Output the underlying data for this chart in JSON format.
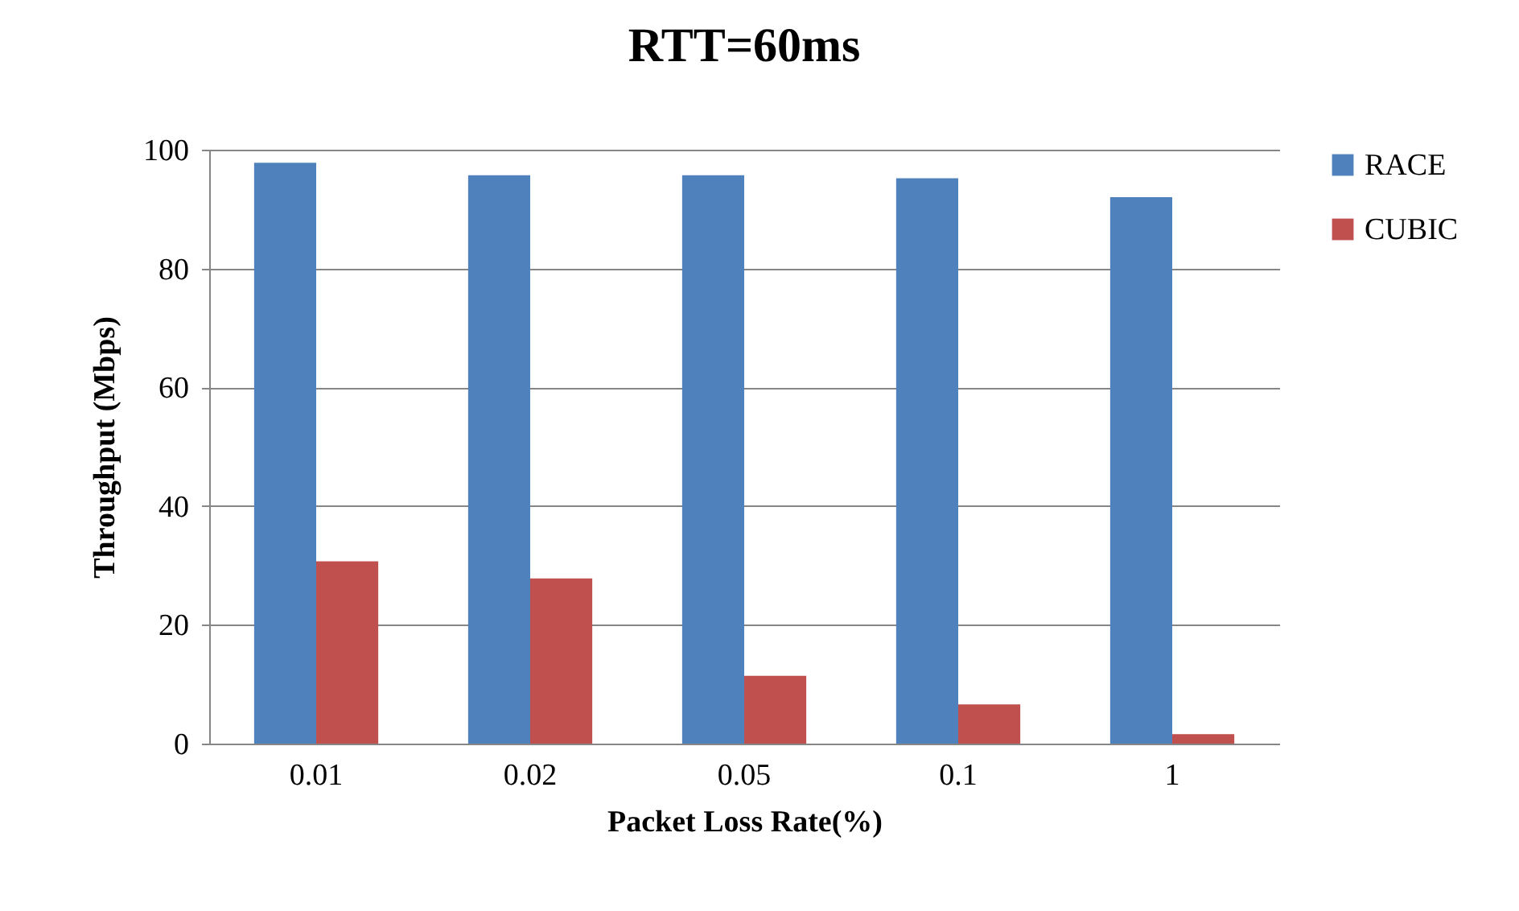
{
  "chart_data": {
    "type": "bar",
    "title": "RTT=60ms",
    "xlabel": "Packet Loss Rate(%)",
    "ylabel": "Throughput  (Mbps)",
    "categories": [
      "0.01",
      "0.02",
      "0.05",
      "0.1",
      "1"
    ],
    "series": [
      {
        "name": "RACE",
        "color": "#4f81bd",
        "values": [
          97.8,
          95.7,
          95.7,
          95.2,
          92.0
        ]
      },
      {
        "name": "CUBIC",
        "color": "#c0504d",
        "values": [
          30.7,
          27.8,
          11.4,
          6.6,
          1.6
        ]
      }
    ],
    "ylim": [
      0,
      100
    ],
    "yticks": [
      0,
      20,
      40,
      60,
      80,
      100
    ],
    "grid": "y",
    "legend": "right"
  }
}
